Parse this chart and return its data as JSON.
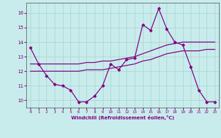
{
  "xlabel": "Windchill (Refroidissement éolien,°C)",
  "background_color": "#c8ecec",
  "grid_color": "#b0d8d8",
  "line_color": "#800080",
  "xlim": [
    -0.5,
    23.5
  ],
  "ylim": [
    9.5,
    16.7
  ],
  "yticks": [
    10,
    11,
    12,
    13,
    14,
    15,
    16
  ],
  "xticks": [
    0,
    1,
    2,
    3,
    4,
    5,
    6,
    7,
    8,
    9,
    10,
    11,
    12,
    13,
    14,
    15,
    16,
    17,
    18,
    19,
    20,
    21,
    22,
    23
  ],
  "series1_x": [
    0,
    1,
    2,
    3,
    4,
    5,
    6,
    7,
    8,
    9,
    10,
    11,
    12,
    13,
    14,
    15,
    16,
    17,
    18,
    19,
    20,
    21,
    22,
    23
  ],
  "series1_y": [
    13.6,
    12.5,
    11.7,
    11.1,
    11.0,
    10.7,
    9.9,
    9.9,
    10.3,
    11.0,
    12.5,
    12.1,
    12.8,
    12.9,
    15.2,
    14.8,
    16.3,
    14.9,
    14.0,
    13.8,
    12.3,
    10.7,
    9.9,
    9.9
  ],
  "series2_x": [
    0,
    1,
    2,
    3,
    4,
    5,
    6,
    7,
    8,
    9,
    10,
    11,
    12,
    13,
    14,
    15,
    16,
    17,
    18,
    19,
    20,
    21,
    22,
    23
  ],
  "series2_y": [
    12.5,
    12.5,
    12.5,
    12.5,
    12.5,
    12.5,
    12.5,
    12.6,
    12.6,
    12.7,
    12.7,
    12.8,
    12.9,
    13.0,
    13.2,
    13.4,
    13.6,
    13.8,
    13.9,
    14.0,
    14.0,
    14.0,
    14.0,
    14.0
  ],
  "series3_x": [
    0,
    1,
    2,
    3,
    4,
    5,
    6,
    7,
    8,
    9,
    10,
    11,
    12,
    13,
    14,
    15,
    16,
    17,
    18,
    19,
    20,
    21,
    22,
    23
  ],
  "series3_y": [
    12.0,
    12.0,
    12.0,
    12.0,
    12.0,
    12.0,
    12.0,
    12.1,
    12.1,
    12.1,
    12.2,
    12.3,
    12.4,
    12.5,
    12.7,
    12.8,
    13.0,
    13.2,
    13.3,
    13.4,
    13.4,
    13.4,
    13.5,
    13.5
  ]
}
